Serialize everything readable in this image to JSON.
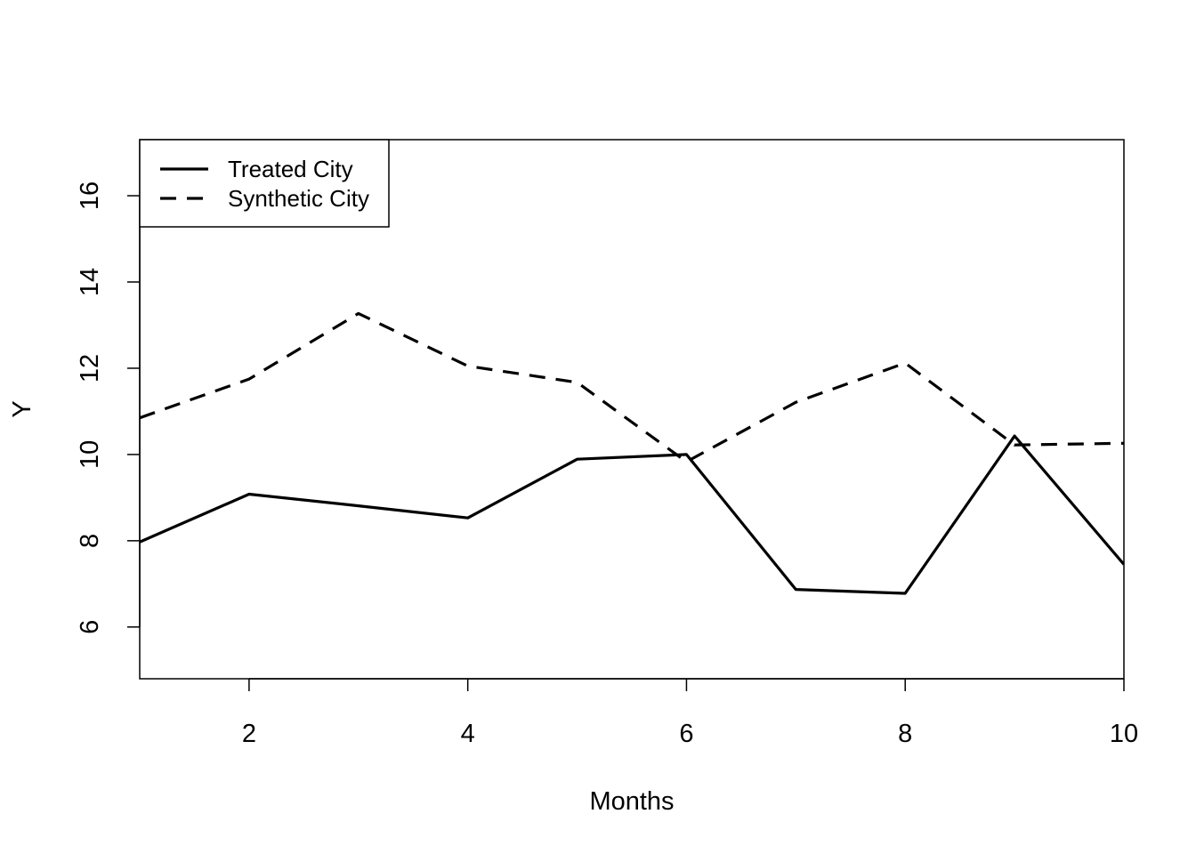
{
  "chart_data": {
    "type": "line",
    "title": "",
    "xlabel": "Months",
    "ylabel": "Y",
    "xlim": [
      1,
      10
    ],
    "ylim": [
      4.8,
      17.3
    ],
    "xticks": [
      2,
      4,
      6,
      8,
      10
    ],
    "yticks": [
      6,
      8,
      10,
      12,
      14,
      16
    ],
    "grid": false,
    "legend_position": "top-left",
    "x": [
      1,
      2,
      3,
      4,
      5,
      6,
      7,
      8,
      9,
      10
    ],
    "series": [
      {
        "name": "Treated City",
        "style": "solid",
        "color": "#000000",
        "values": [
          7.97,
          9.08,
          8.81,
          8.53,
          9.89,
          10.0,
          6.87,
          6.78,
          10.43,
          7.45
        ]
      },
      {
        "name": "Synthetic City",
        "style": "dashed",
        "color": "#000000",
        "values": [
          10.85,
          11.75,
          13.27,
          12.05,
          11.67,
          9.83,
          11.21,
          12.12,
          10.22,
          10.26
        ]
      }
    ]
  }
}
